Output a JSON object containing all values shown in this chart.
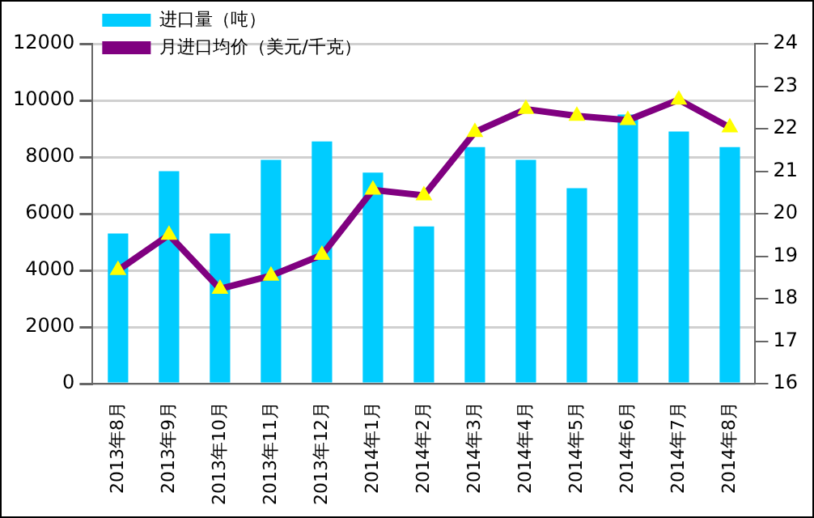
{
  "chart_data": {
    "type": "bar",
    "categories": [
      "2013年8月",
      "2013年9月",
      "2013年10月",
      "2013年11月",
      "2013年12月",
      "2014年1月",
      "2014年2月",
      "2014年3月",
      "2014年4月",
      "2014年5月",
      "2014年6月",
      "2014年7月",
      "2014年8月"
    ],
    "series": [
      {
        "name": "进口量（吨）",
        "color": "#00ccff",
        "values": [
          5300,
          7500,
          5300,
          7900,
          8550,
          7450,
          5550,
          8350,
          7900,
          6900,
          9500,
          8900,
          8350
        ]
      },
      {
        "name": "月进口均价（美元/千克）",
        "type": "line",
        "axis": "y2",
        "color": "#800080",
        "marker": "triangle",
        "values": [
          18.67,
          19.5,
          18.23,
          18.54,
          19.03,
          20.56,
          20.43,
          21.92,
          22.46,
          22.3,
          22.2,
          22.68,
          22.03
        ]
      }
    ],
    "ylim": [
      0,
      12000
    ],
    "yticks": [
      0,
      2000,
      4000,
      6000,
      8000,
      10000,
      12000
    ],
    "y2lim": [
      16,
      24
    ],
    "y2ticks": [
      16,
      17,
      18,
      19,
      20,
      21,
      22,
      23,
      24
    ],
    "grid": "y",
    "legend": "top left"
  }
}
